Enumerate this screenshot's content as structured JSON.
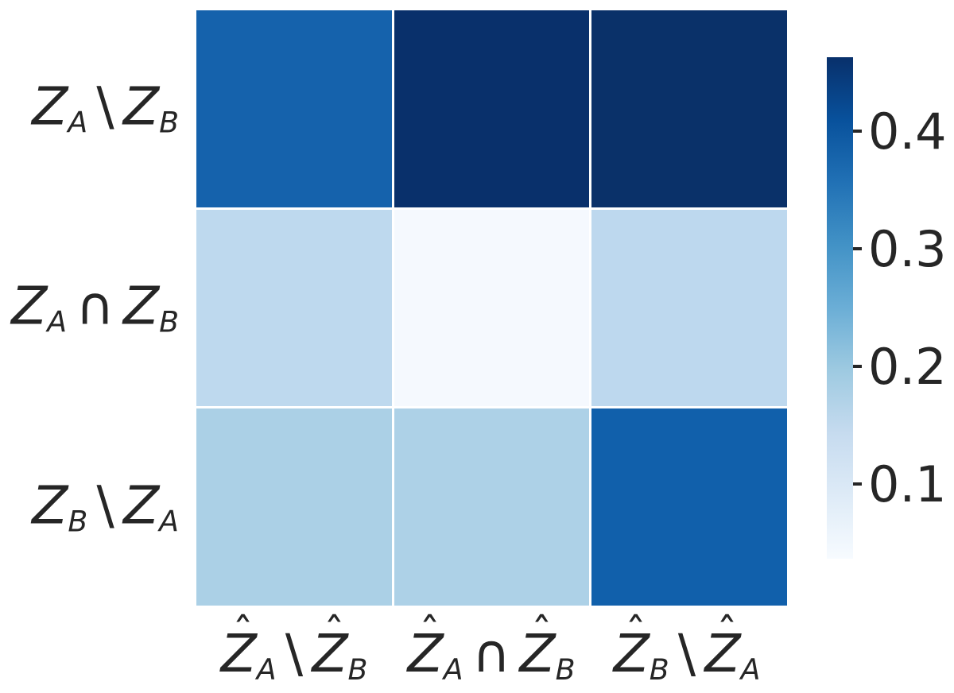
{
  "figure": {
    "background": "#ffffff",
    "text_color": "#262626"
  },
  "chart_data": {
    "type": "heatmap",
    "colormap": "Blues",
    "title": "",
    "xlabel": "",
    "ylabel": "",
    "rows": [
      "Z_A \\ Z_B",
      "Z_A ∩ Z_B",
      "Z_B \\ Z_A"
    ],
    "columns": [
      "Ẑ_A \\ Ẑ_B",
      "Ẑ_A ∩ Ẑ_B",
      "Ẑ_B \\ Ẑ_A"
    ],
    "values": [
      [
        0.38,
        0.46,
        0.46
      ],
      [
        0.16,
        0.05,
        0.16
      ],
      [
        0.19,
        0.19,
        0.38
      ]
    ],
    "cell_colors": [
      [
        "#1562ac",
        "#09306b",
        "#0a3169"
      ],
      [
        "#bed9ee",
        "#f5f9fe",
        "#bdd8ee"
      ],
      [
        "#abd0e6",
        "#add1e7",
        "#1160ab"
      ]
    ],
    "grid": false,
    "legend_position": "right",
    "colorbar": {
      "vmin": 0.04,
      "vmax": 0.46,
      "ticks": [
        0.4,
        0.3,
        0.2,
        0.1
      ],
      "tick_labels": [
        "0.4",
        "0.3",
        "0.2",
        "0.1"
      ],
      "gradient_top_to_bottom": [
        "#08306b",
        "#08519c",
        "#2171b5",
        "#4292c6",
        "#6baed6",
        "#9ecae1",
        "#c6dbef",
        "#deebf7",
        "#f7fbff"
      ]
    }
  }
}
